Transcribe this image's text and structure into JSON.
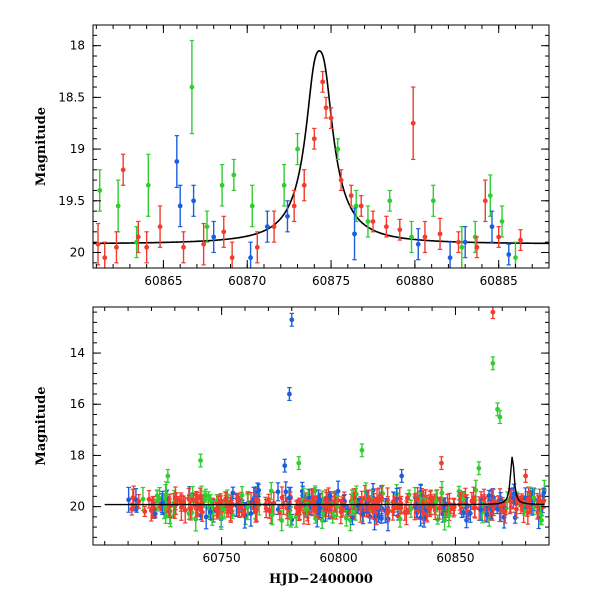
{
  "chart_data": [
    {
      "type": "scatter",
      "panel": "top",
      "title": "",
      "xlabel": "",
      "ylabel": "Magnitude",
      "xlim": [
        60860.8,
        60888.0
      ],
      "ylim": [
        20.15,
        17.8
      ],
      "y_inverted": true,
      "xticks": [
        60865,
        60870,
        60875,
        60880,
        60885
      ],
      "xtick_labels": [
        "60865",
        "60870",
        "60875",
        "60880",
        "60885"
      ],
      "yticks": [
        18,
        18.5,
        19,
        19.5,
        20
      ],
      "ytick_labels": [
        "18",
        "18.5",
        "19",
        "19.5",
        "20"
      ],
      "grid": false,
      "legend": "none",
      "model_curve": {
        "type": "line",
        "color": "#000000",
        "peak_x": 60874.3,
        "peak_mag": 18.05,
        "baseline_mag": 19.92
      },
      "series": [
        {
          "color": "#33cc33",
          "points": [
            [
              60861.2,
              19.4,
              0.2
            ],
            [
              60862.3,
              19.55,
              0.25
            ],
            [
              60863.4,
              19.9,
              0.15
            ],
            [
              60864.1,
              19.35,
              0.3
            ],
            [
              60866.7,
              18.4,
              0.45
            ],
            [
              60867.6,
              19.75,
              0.15
            ],
            [
              60868.5,
              19.35,
              0.2
            ],
            [
              60869.2,
              19.25,
              0.15
            ],
            [
              60870.3,
              19.55,
              0.2
            ],
            [
              60872.2,
              19.35,
              0.2
            ],
            [
              60873.0,
              19.0,
              0.15
            ],
            [
              60875.4,
              19.0,
              0.1
            ],
            [
              60876.5,
              19.55,
              0.15
            ],
            [
              60877.2,
              19.7,
              0.15
            ],
            [
              60878.5,
              19.5,
              0.1
            ],
            [
              60879.8,
              19.85,
              0.15
            ],
            [
              60881.1,
              19.5,
              0.15
            ],
            [
              60882.8,
              19.95,
              0.2
            ],
            [
              60883.6,
              19.85,
              0.15
            ],
            [
              60884.5,
              19.45,
              0.2
            ],
            [
              60885.2,
              19.7,
              0.15
            ],
            [
              60886.0,
              20.05,
              0.15
            ]
          ]
        },
        {
          "color": "#1a5fe0",
          "points": [
            [
              60865.8,
              19.12,
              0.25
            ],
            [
              60866.0,
              19.55,
              0.2
            ],
            [
              60866.8,
              19.5,
              0.15
            ],
            [
              60868.0,
              19.85,
              0.15
            ],
            [
              60870.2,
              20.05,
              0.15
            ],
            [
              60871.2,
              19.75,
              0.15
            ],
            [
              60872.4,
              19.65,
              0.15
            ],
            [
              60876.4,
              19.82,
              0.25
            ],
            [
              60880.2,
              19.92,
              0.15
            ],
            [
              60882.1,
              20.05,
              0.15
            ],
            [
              60883.0,
              19.9,
              0.15
            ],
            [
              60884.6,
              19.75,
              0.15
            ],
            [
              60885.6,
              20.02,
              0.1
            ]
          ]
        },
        {
          "color": "#f23c2e",
          "points": [
            [
              60861.1,
              19.92,
              0.2
            ],
            [
              60861.5,
              20.05,
              0.15
            ],
            [
              60862.2,
              19.95,
              0.15
            ],
            [
              60862.6,
              19.2,
              0.15
            ],
            [
              60863.5,
              19.85,
              0.15
            ],
            [
              60864.0,
              19.95,
              0.15
            ],
            [
              60864.8,
              19.75,
              0.2
            ],
            [
              60866.2,
              19.95,
              0.15
            ],
            [
              60867.4,
              19.92,
              0.2
            ],
            [
              60868.6,
              19.8,
              0.15
            ],
            [
              60869.1,
              20.05,
              0.15
            ],
            [
              60870.6,
              19.95,
              0.15
            ],
            [
              60871.6,
              19.75,
              0.15
            ],
            [
              60872.8,
              19.55,
              0.15
            ],
            [
              60873.4,
              19.35,
              0.15
            ],
            [
              60874.0,
              18.9,
              0.1
            ],
            [
              60874.5,
              18.35,
              0.1
            ],
            [
              60874.7,
              18.6,
              0.1
            ],
            [
              60875.0,
              18.7,
              0.1
            ],
            [
              60875.6,
              19.3,
              0.1
            ],
            [
              60876.2,
              19.45,
              0.1
            ],
            [
              60876.8,
              19.55,
              0.1
            ],
            [
              60877.5,
              19.7,
              0.1
            ],
            [
              60878.3,
              19.75,
              0.1
            ],
            [
              60879.1,
              19.78,
              0.1
            ],
            [
              60879.9,
              18.75,
              0.35
            ],
            [
              60880.6,
              19.85,
              0.15
            ],
            [
              60881.5,
              19.82,
              0.15
            ],
            [
              60882.6,
              19.9,
              0.1
            ],
            [
              60883.7,
              19.95,
              0.1
            ],
            [
              60884.2,
              19.5,
              0.2
            ],
            [
              60885.0,
              19.85,
              0.1
            ],
            [
              60886.3,
              19.88,
              0.1
            ]
          ]
        }
      ]
    },
    {
      "type": "scatter",
      "panel": "bottom",
      "title": "",
      "xlabel": "HJD−2400000",
      "ylabel": "Magnitude",
      "xlim": [
        60695,
        60890
      ],
      "ylim": [
        21.5,
        12.2
      ],
      "y_inverted": true,
      "xticks": [
        60750,
        60800,
        60850
      ],
      "xtick_labels": [
        "60750",
        "60800",
        "60850"
      ],
      "yticks": [
        14,
        16,
        18,
        20
      ],
      "ytick_labels": [
        "14",
        "16",
        "18",
        "20"
      ],
      "grid": false,
      "legend": "none",
      "baseline_band": {
        "x_range": [
          60710,
          60888
        ],
        "mag": 19.95
      },
      "outliers": [
        {
          "color": "#1a5fe0",
          "x": 60780,
          "y": 12.7
        },
        {
          "color": "#1a5fe0",
          "x": 60779,
          "y": 15.6
        },
        {
          "color": "#1a5fe0",
          "x": 60777,
          "y": 18.4
        },
        {
          "color": "#33cc33",
          "x": 60866,
          "y": 14.4
        },
        {
          "color": "#33cc33",
          "x": 60868,
          "y": 16.2
        },
        {
          "color": "#33cc33",
          "x": 60869,
          "y": 16.5
        },
        {
          "color": "#f23c2e",
          "x": 60866,
          "y": 12.4
        },
        {
          "color": "#33cc33",
          "x": 60727,
          "y": 18.8
        },
        {
          "color": "#33cc33",
          "x": 60741,
          "y": 18.2
        },
        {
          "color": "#33cc33",
          "x": 60783,
          "y": 18.3
        },
        {
          "color": "#33cc33",
          "x": 60810,
          "y": 17.8
        },
        {
          "color": "#f23c2e",
          "x": 60844,
          "y": 18.3
        },
        {
          "color": "#1a5fe0",
          "x": 60827,
          "y": 18.8
        },
        {
          "color": "#33cc33",
          "x": 60860,
          "y": 18.5
        },
        {
          "color": "#f23c2e",
          "x": 60880,
          "y": 18.8
        }
      ]
    }
  ]
}
